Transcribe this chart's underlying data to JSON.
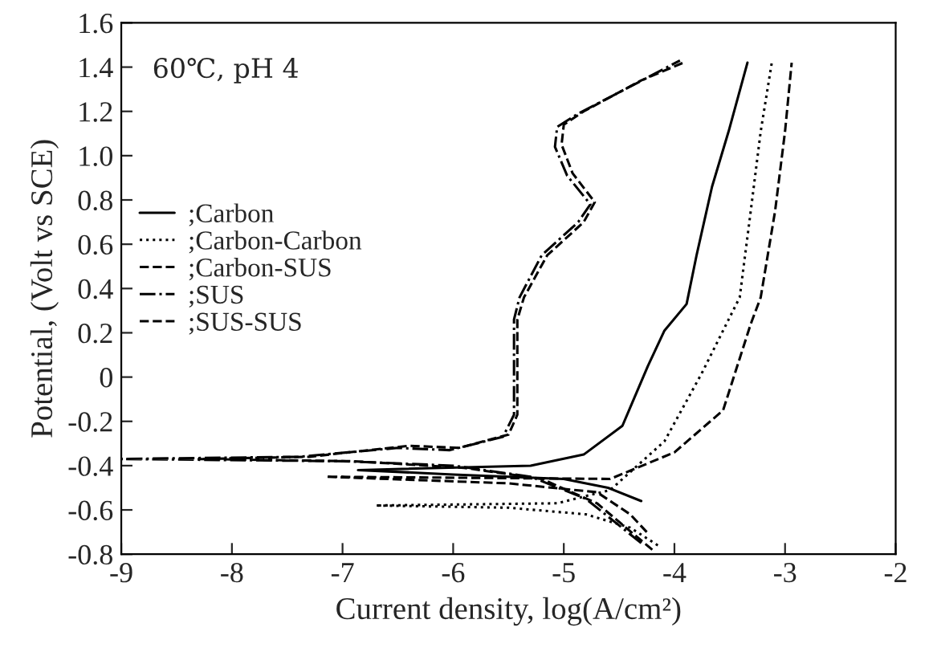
{
  "chart_data": {
    "type": "line",
    "xlabel": "Current density, log(A/cm²)",
    "ylabel": "Potential, (Volt vs SCE)",
    "annotations": [
      "60℃, pH 4"
    ],
    "xlim": [
      -9,
      -2
    ],
    "xticks": [
      -9,
      -8,
      -7,
      -6,
      -5,
      -4,
      -3,
      -2
    ],
    "ylim": [
      -0.8,
      1.6
    ],
    "yticks": [
      -0.8,
      -0.6,
      -0.4,
      -0.2,
      0,
      0.2,
      0.4,
      0.6,
      0.8,
      {
        "value": 1,
        "label": "1.0"
      },
      1.2,
      1.4,
      1.6
    ],
    "grid": false,
    "legend": "top left",
    "marker": "none",
    "series": [
      {
        "name": ";Carbon",
        "color": "#000000",
        "line_style": "solid",
        "x": [
          -4.3,
          -4.6,
          -5.0,
          -6.0,
          -6.86,
          -5.3,
          -4.82,
          -4.47,
          -4.24,
          -4.09,
          -3.89,
          -3.8,
          -3.66,
          -3.51,
          -3.34
        ],
        "values": [
          -0.56,
          -0.5,
          -0.46,
          -0.44,
          -0.42,
          -0.4,
          -0.35,
          -0.22,
          0.05,
          0.21,
          0.33,
          0.55,
          0.86,
          1.11,
          1.42
        ]
      },
      {
        "name": ";Carbon-Carbon",
        "color": "#000000",
        "line_style": "dotted",
        "x": [
          -4.15,
          -4.4,
          -4.8,
          -5.5,
          -6.7,
          -5.06,
          -4.58,
          -4.09,
          -3.75,
          -3.51,
          -3.41,
          -3.31,
          -3.22,
          -3.12
        ],
        "values": [
          -0.76,
          -0.68,
          -0.62,
          -0.59,
          -0.58,
          -0.57,
          -0.51,
          -0.29,
          0.02,
          0.26,
          0.36,
          0.75,
          1.11,
          1.42
        ]
      },
      {
        "name": ";Carbon-SUS",
        "color": "#000000",
        "line_style": "dashed",
        "x": [
          -4.25,
          -4.4,
          -4.7,
          -5.5,
          -7.15,
          -4.58,
          -4.0,
          -3.56,
          -3.31,
          -3.22,
          -3.09,
          -3.0,
          -2.94
        ],
        "values": [
          -0.7,
          -0.62,
          -0.52,
          -0.48,
          -0.45,
          -0.46,
          -0.34,
          -0.15,
          0.24,
          0.36,
          0.75,
          1.11,
          1.42
        ]
      },
      {
        "name": ";SUS",
        "color": "#000000",
        "line_style": "dashdot",
        "x": [
          -4.3,
          -4.8,
          -5.3,
          -6.0,
          -7.0,
          -9.0,
          -7.4,
          -6.5,
          -6.03,
          -5.55,
          -5.45,
          -5.45,
          -5.4,
          -5.2,
          -4.87,
          -4.76,
          -4.97,
          -5.08,
          -5.06,
          -4.87,
          -4.33,
          -3.95
        ],
        "values": [
          -0.75,
          -0.55,
          -0.45,
          -0.4,
          -0.38,
          -0.37,
          -0.36,
          -0.32,
          -0.33,
          -0.27,
          -0.17,
          0.26,
          0.36,
          0.55,
          0.7,
          0.78,
          0.91,
          1.04,
          1.13,
          1.19,
          1.33,
          1.43
        ]
      },
      {
        "name": ";SUS-SUS",
        "color": "#000000",
        "line_style": "dashed",
        "x": [
          -4.2,
          -4.7,
          -5.2,
          -5.9,
          -6.9,
          -8.3,
          -7.3,
          -6.4,
          -5.95,
          -5.5,
          -5.42,
          -5.42,
          -5.36,
          -5.15,
          -4.82,
          -4.72,
          -4.92,
          -5.02,
          -5.0,
          -4.82,
          -4.3,
          -3.92
        ],
        "values": [
          -0.78,
          -0.57,
          -0.46,
          -0.41,
          -0.38,
          -0.37,
          -0.36,
          -0.31,
          -0.32,
          -0.26,
          -0.17,
          0.26,
          0.36,
          0.55,
          0.7,
          0.79,
          0.92,
          1.05,
          1.14,
          1.2,
          1.34,
          1.42
        ]
      }
    ]
  }
}
